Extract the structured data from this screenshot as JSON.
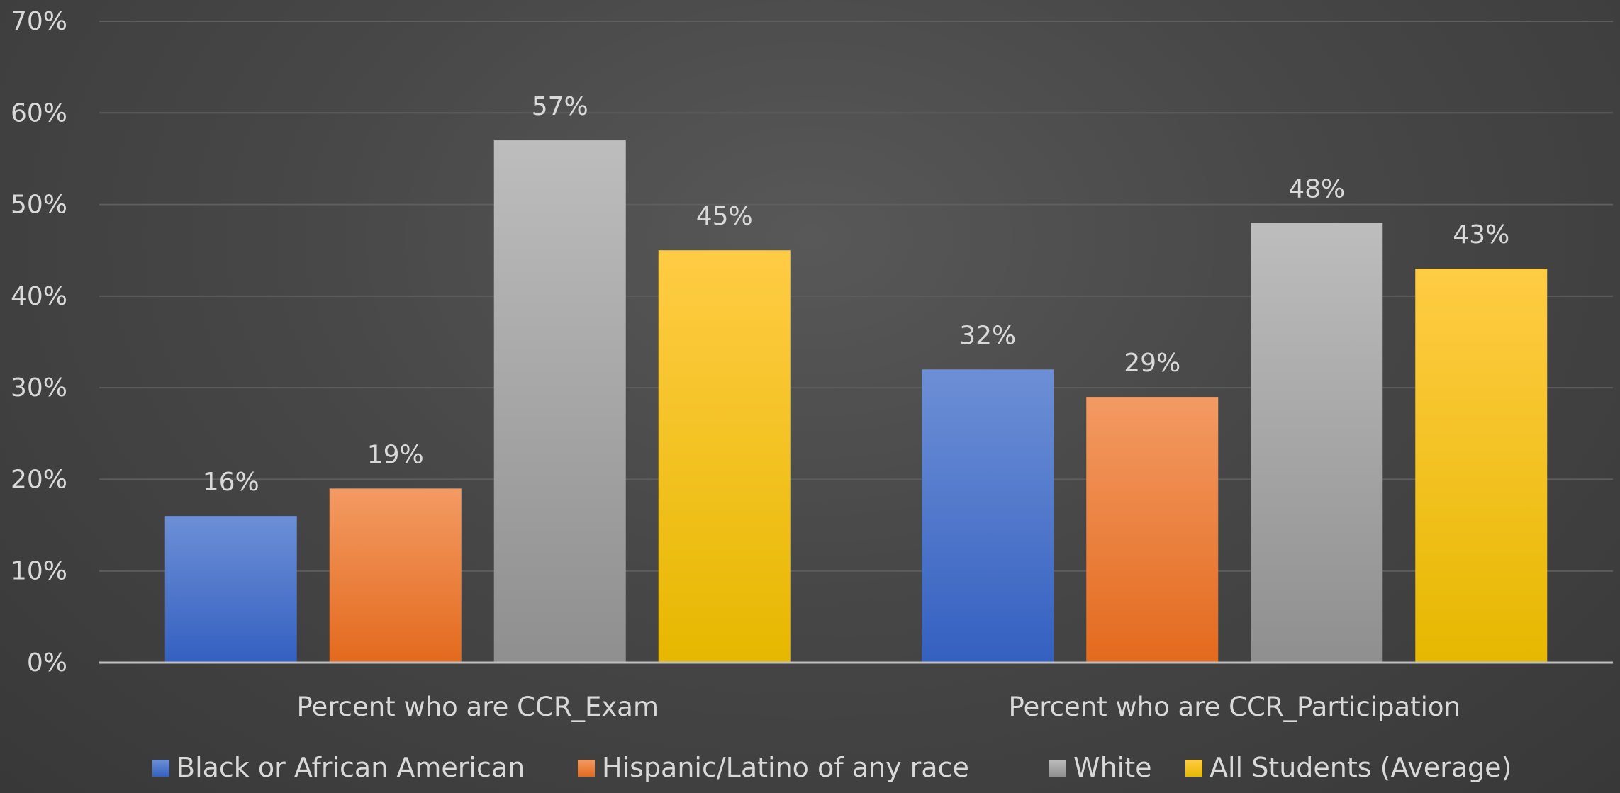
{
  "chart_data": {
    "type": "bar",
    "title": "",
    "xlabel": "",
    "ylabel": "",
    "categories": [
      "Percent who are CCR_Exam",
      "Percent who are CCR_Participation"
    ],
    "series": [
      {
        "name": "Black or African American",
        "values": [
          16,
          32
        ],
        "labels": [
          "16%",
          "32%"
        ],
        "color_top": "#6d8fd6",
        "color_bottom": "#3460c0"
      },
      {
        "name": "Hispanic/Latino of any race",
        "values": [
          19,
          29
        ],
        "labels": [
          "19%",
          "29%"
        ],
        "color_top": "#f39a63",
        "color_bottom": "#e36a1e"
      },
      {
        "name": "White",
        "values": [
          57,
          48
        ],
        "labels": [
          "57%",
          "48%"
        ],
        "color_top": "#bdbdbd",
        "color_bottom": "#8f8f8f"
      },
      {
        "name": "All Students (Average)",
        "values": [
          45,
          43
        ],
        "labels": [
          "45%",
          "43%"
        ],
        "color_top": "#ffcc44",
        "color_bottom": "#e6b800"
      }
    ],
    "ylim": [
      0,
      70
    ],
    "yticks": [
      0,
      10,
      20,
      30,
      40,
      50,
      60,
      70
    ],
    "ytick_labels": [
      "0%",
      "10%",
      "20%",
      "30%",
      "40%",
      "50%",
      "60%",
      "70%"
    ],
    "grid": true,
    "legend_position": "bottom",
    "background_color": "#474747",
    "text_color": "#d9d9d9",
    "grid_color": "#5e5e5e",
    "axis_color": "#bfbfbf"
  }
}
